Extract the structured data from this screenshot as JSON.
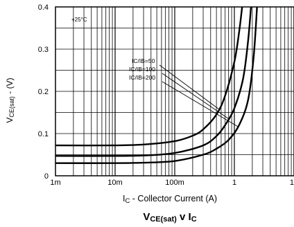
{
  "chart_data": {
    "type": "line",
    "title": {
      "main": "V",
      "main_sub": "CE(sat)",
      "rest": " v I",
      "rest_sub": "C"
    },
    "xlabel": {
      "main": "I",
      "sub": "C",
      "rest": " - Collector Current (A)"
    },
    "ylabel": {
      "main": "V",
      "sub": "CE(sat)",
      "rest": " - (V)"
    },
    "x_scale": "log",
    "xlim": [
      0.001,
      10
    ],
    "ylim": [
      0,
      0.4
    ],
    "x_ticks": [
      {
        "value": 0.001,
        "label": "1m"
      },
      {
        "value": 0.01,
        "label": "10m"
      },
      {
        "value": 0.1,
        "label": "100m"
      },
      {
        "value": 1,
        "label": "1"
      },
      {
        "value": 10,
        "label": "10"
      }
    ],
    "y_ticks": [
      {
        "value": 0,
        "label": "0"
      },
      {
        "value": 0.1,
        "label": "0.1"
      },
      {
        "value": 0.2,
        "label": "0.2"
      },
      {
        "value": 0.3,
        "label": "0.3"
      },
      {
        "value": 0.4,
        "label": "0.4"
      }
    ],
    "grid": true,
    "condition_label": "+25°C",
    "series": [
      {
        "name": "IC/IB=50",
        "x": [
          0.001,
          0.01,
          0.03,
          0.1,
          0.2,
          0.3,
          0.5,
          0.7,
          1.0,
          1.2,
          1.35
        ],
        "y": [
          0.072,
          0.072,
          0.074,
          0.082,
          0.095,
          0.11,
          0.145,
          0.19,
          0.27,
          0.34,
          0.4
        ]
      },
      {
        "name": "IC/IB=100",
        "x": [
          0.001,
          0.01,
          0.03,
          0.1,
          0.3,
          0.5,
          0.7,
          1.0,
          1.4,
          1.7,
          1.9
        ],
        "y": [
          0.047,
          0.047,
          0.048,
          0.054,
          0.072,
          0.094,
          0.12,
          0.16,
          0.23,
          0.32,
          0.4
        ]
      },
      {
        "name": "IC/IB=200",
        "x": [
          0.001,
          0.01,
          0.03,
          0.1,
          0.3,
          0.5,
          0.8,
          1.2,
          1.7,
          2.1,
          2.4
        ],
        "y": [
          0.03,
          0.03,
          0.031,
          0.035,
          0.05,
          0.064,
          0.085,
          0.12,
          0.18,
          0.28,
          0.4
        ]
      }
    ]
  }
}
